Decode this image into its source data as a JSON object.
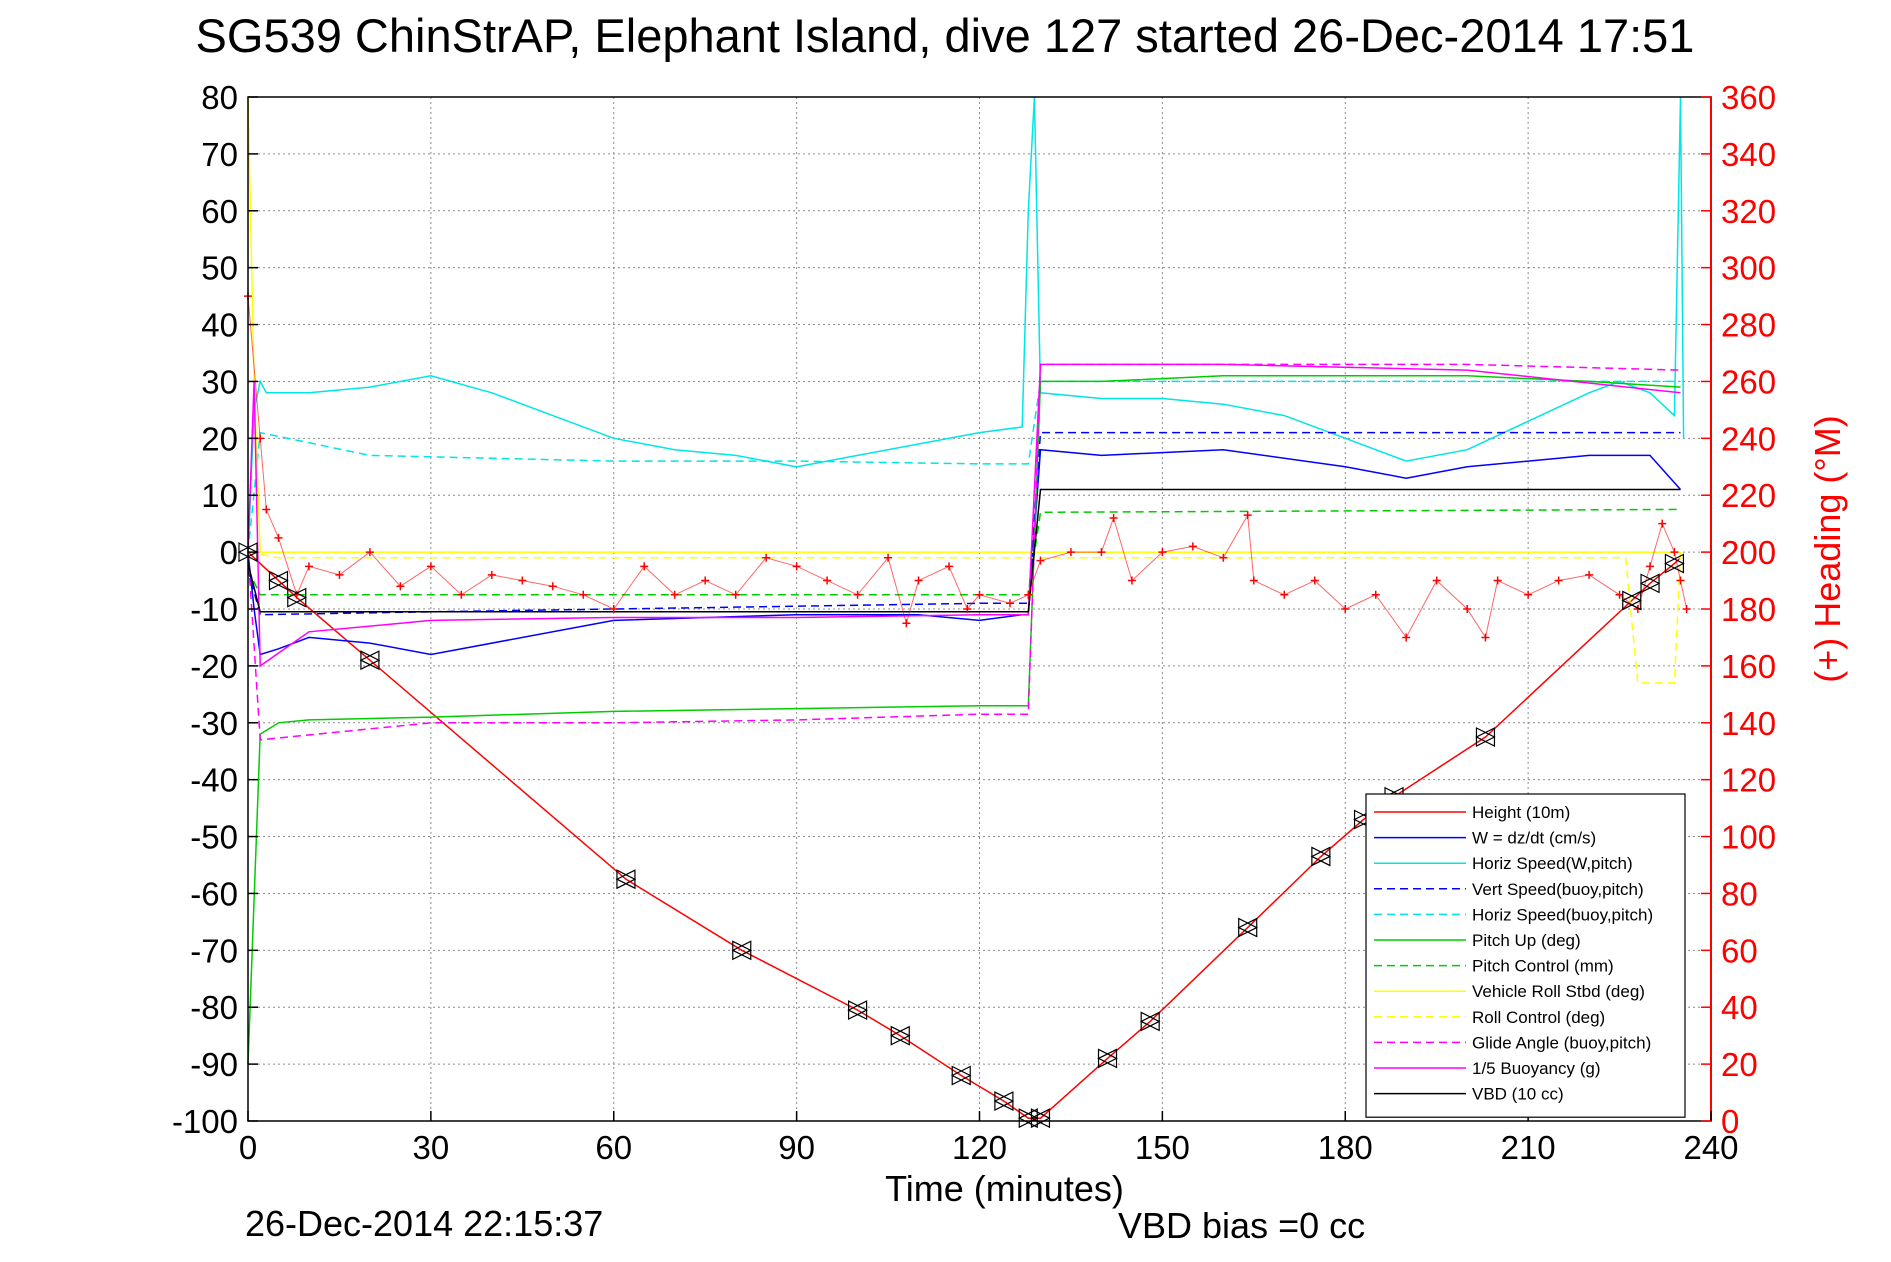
{
  "chart_data": {
    "type": "line",
    "title": "SG539 ChinStrAP, Elephant Island, dive 127 started 26-Dec-2014 17:51",
    "xlabel": "Time (minutes)",
    "ylabel": "",
    "ylabel_right": "(+) Heading (°M)",
    "xlim": [
      0,
      240
    ],
    "ylim": [
      -100,
      80
    ],
    "ylim_right": [
      0,
      360
    ],
    "x_ticks": [
      "0",
      "30",
      "60",
      "90",
      "120",
      "150",
      "180",
      "210",
      "240"
    ],
    "y_ticks": [
      "80",
      "70",
      "60",
      "50",
      "40",
      "30",
      "20",
      "10",
      "0",
      "-10",
      "-20",
      "-30",
      "-40",
      "-50",
      "-60",
      "-70",
      "-80",
      "-90",
      "-100"
    ],
    "y_ticks_right": [
      "360",
      "340",
      "320",
      "300",
      "280",
      "260",
      "240",
      "220",
      "200",
      "180",
      "160",
      "140",
      "120",
      "100",
      "80",
      "60",
      "40",
      "20",
      "0"
    ],
    "grid": true,
    "legend_position": "lower-right",
    "footer_left": "26-Dec-2014 22:15:37",
    "footer_right": "VBD bias =0 cc",
    "series": [
      {
        "name": "Height (10m)",
        "color": "#ff0000",
        "style": "solid",
        "x": [
          0,
          5,
          8,
          20,
          62,
          81,
          100,
          107,
          117,
          124,
          128,
          130,
          141,
          148,
          164,
          176,
          183,
          188,
          203,
          227,
          230,
          234,
          235
        ],
        "y": [
          0,
          -5,
          -8,
          -19,
          -57.5,
          -70,
          -80.5,
          -85,
          -92,
          -96.5,
          -99.5,
          -99.5,
          -89,
          -82.5,
          -66,
          -53.5,
          -47,
          -43,
          -32.5,
          -8.5,
          -5.5,
          -2,
          -1
        ]
      },
      {
        "name": "W = dz/dt (cm/s)",
        "color": "#0000ff",
        "style": "solid",
        "x": [
          0,
          1,
          2,
          5,
          10,
          20,
          30,
          60,
          90,
          110,
          120,
          127,
          128,
          130,
          140,
          160,
          180,
          190,
          200,
          210,
          220,
          230,
          235
        ],
        "y": [
          0,
          -10,
          -18,
          -17,
          -15,
          -16,
          -18,
          -12,
          -11,
          -11,
          -12,
          -11,
          -11,
          18,
          17,
          18,
          15,
          13,
          15,
          16,
          17,
          17,
          11
        ]
      },
      {
        "name": "Horiz Speed(W,pitch)",
        "color": "#00e5e5",
        "style": "solid",
        "x": [
          0,
          1,
          2,
          3,
          5,
          10,
          20,
          30,
          40,
          50,
          60,
          70,
          80,
          90,
          100,
          110,
          120,
          127,
          128,
          129,
          130,
          140,
          150,
          160,
          170,
          180,
          190,
          200,
          210,
          220,
          225,
          230,
          234,
          235,
          235.5
        ],
        "y": [
          0,
          25,
          30,
          28,
          28,
          28,
          29,
          31,
          28,
          24,
          20,
          18,
          17,
          15,
          17,
          19,
          21,
          22,
          60,
          80,
          28,
          27,
          27,
          26,
          24,
          20,
          16,
          18,
          23,
          28,
          30,
          28,
          24,
          80,
          20
        ]
      },
      {
        "name": "Vert Speed(buoy,pitch)",
        "color": "#0000ff",
        "style": "dashed",
        "x": [
          0,
          2,
          30,
          60,
          90,
          120,
          128,
          130,
          160,
          200,
          235
        ],
        "y": [
          -3,
          -11,
          -10.5,
          -10,
          -9.5,
          -9,
          -9,
          21,
          21,
          21,
          21
        ]
      },
      {
        "name": "Horiz Speed(buoy,pitch)",
        "color": "#00e5e5",
        "style": "dashed",
        "x": [
          0,
          2,
          20,
          60,
          90,
          120,
          128,
          130,
          160,
          200,
          235
        ],
        "y": [
          0,
          21,
          17,
          16,
          16,
          15.5,
          15.5,
          30,
          30,
          30,
          30
        ]
      },
      {
        "name": "Pitch Up (deg)",
        "color": "#00cc00",
        "style": "solid",
        "x": [
          0,
          2,
          5,
          10,
          30,
          60,
          90,
          120,
          128,
          130,
          140,
          160,
          180,
          200,
          220,
          235
        ],
        "y": [
          -90,
          -32,
          -30,
          -29.5,
          -29,
          -28,
          -27.5,
          -27,
          -27,
          30,
          30,
          31,
          31,
          31,
          30,
          29
        ]
      },
      {
        "name": "Pitch Control (mm)",
        "color": "#00cc00",
        "style": "dashed",
        "x": [
          0,
          2,
          60,
          128,
          130,
          235
        ],
        "y": [
          -3,
          -7.5,
          -7.5,
          -7.5,
          7,
          7.5
        ]
      },
      {
        "name": "Vehicle Roll Stbd (deg)",
        "color": "#ffff00",
        "style": "solid",
        "x": [
          0,
          1,
          2,
          5,
          10,
          60,
          128,
          130,
          235
        ],
        "y": [
          80,
          30,
          0,
          0,
          0,
          0,
          0,
          0,
          0
        ]
      },
      {
        "name": "Roll Control (deg)",
        "color": "#ffff00",
        "style": "dashed",
        "x": [
          0,
          5,
          10,
          60,
          128,
          130,
          226,
          228,
          234,
          235
        ],
        "y": [
          0,
          -1,
          -1,
          -1,
          -1,
          -1,
          -1,
          -23,
          -23,
          0
        ]
      },
      {
        "name": "Glide Angle (buoy,pitch)",
        "color": "#ff00ff",
        "style": "dashed",
        "x": [
          0,
          2,
          30,
          60,
          90,
          120,
          128,
          130,
          160,
          200,
          235
        ],
        "y": [
          0,
          -33,
          -30,
          -30,
          -29.5,
          -28.5,
          -28.5,
          33,
          33,
          33,
          32
        ]
      },
      {
        "name": "1/5 Buoyancy (g)",
        "color": "#ff00ff",
        "style": "solid",
        "x": [
          0,
          1,
          2,
          10,
          30,
          60,
          90,
          120,
          128,
          130,
          160,
          200,
          235
        ],
        "y": [
          0,
          30,
          -20,
          -14,
          -12,
          -11.5,
          -11.5,
          -11,
          -11,
          33,
          33,
          32,
          28
        ]
      },
      {
        "name": "VBD (10 cc)",
        "color": "#000000",
        "style": "solid",
        "x": [
          0,
          2,
          128,
          130,
          235
        ],
        "y": [
          -2,
          -10.5,
          -10.5,
          11,
          11
        ]
      }
    ],
    "heading": {
      "name": "(+) Heading (°M)",
      "color": "#ff0000",
      "marker": "+",
      "axis": "right",
      "x": [
        0,
        2,
        3,
        5,
        8,
        10,
        15,
        20,
        25,
        30,
        35,
        40,
        45,
        50,
        55,
        60,
        65,
        70,
        75,
        80,
        85,
        90,
        95,
        100,
        105,
        108,
        110,
        115,
        118,
        120,
        125,
        128,
        130,
        135,
        140,
        142,
        145,
        150,
        155,
        160,
        164,
        165,
        170,
        175,
        180,
        185,
        190,
        195,
        200,
        203,
        205,
        210,
        215,
        220,
        225,
        228,
        230,
        232,
        234,
        235,
        236
      ],
      "y": [
        290,
        240,
        215,
        205,
        185,
        195,
        192,
        200,
        188,
        195,
        185,
        192,
        190,
        188,
        185,
        180,
        195,
        185,
        190,
        185,
        198,
        195,
        190,
        185,
        198,
        175,
        190,
        195,
        180,
        185,
        182,
        185,
        197,
        200,
        200,
        212,
        190,
        200,
        202,
        198,
        213,
        190,
        185,
        190,
        180,
        185,
        170,
        190,
        180,
        170,
        190,
        185,
        190,
        192,
        185,
        180,
        195,
        210,
        200,
        190,
        180
      ]
    },
    "markers": {
      "name": "height markers",
      "shape": "triangle-pair",
      "x": [
        0,
        5,
        8,
        20,
        62,
        81,
        100,
        107,
        117,
        124,
        128,
        130,
        141,
        148,
        164,
        176,
        183,
        188,
        203,
        227,
        230,
        234
      ],
      "y": [
        0,
        -5,
        -8,
        -19,
        -57.5,
        -70,
        -80.5,
        -85,
        -92,
        -96.5,
        -99.5,
        -99.5,
        -89,
        -82.5,
        -66,
        -53.5,
        -47,
        -43,
        -32.5,
        -8.5,
        -5.5,
        -2
      ]
    }
  }
}
